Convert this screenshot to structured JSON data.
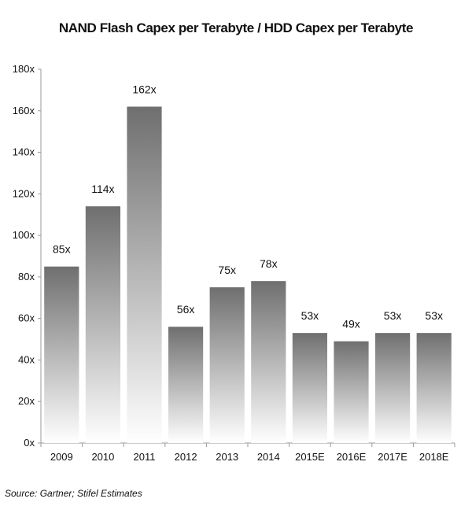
{
  "chart_data": {
    "type": "bar",
    "title": "NAND Flash Capex per Terabyte / HDD Capex per Terabyte",
    "xlabel": "",
    "ylabel": "",
    "categories": [
      "2009",
      "2010",
      "2011",
      "2012",
      "2013",
      "2014",
      "2015E",
      "2016E",
      "2017E",
      "2018E"
    ],
    "values": [
      85,
      114,
      162,
      56,
      75,
      78,
      53,
      49,
      53,
      53
    ],
    "data_labels": [
      "85x",
      "114x",
      "162x",
      "56x",
      "75x",
      "78x",
      "53x",
      "49x",
      "53x",
      "53x"
    ],
    "ylim": [
      0,
      180
    ],
    "y_ticks": [
      0,
      20,
      40,
      60,
      80,
      100,
      120,
      140,
      160,
      180
    ],
    "y_tick_labels": [
      "0x",
      "20x",
      "40x",
      "60x",
      "80x",
      "100x",
      "120x",
      "140x",
      "160x",
      "180x"
    ],
    "grid": false,
    "legend": "none",
    "bar_gradient": [
      "#6f6f6f",
      "#ffffff"
    ]
  },
  "source": "Source: Gartner; Stifel Estimates"
}
